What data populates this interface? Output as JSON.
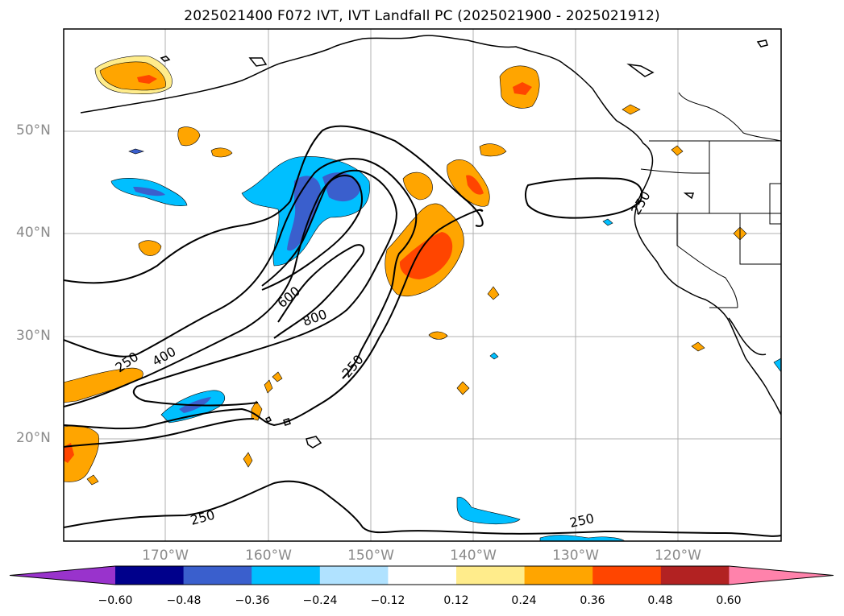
{
  "title": "2025021400 F072 IVT, IVT Landfall PC (2025021900 - 2025021912)",
  "lat_labels": [
    "50°N",
    "40°N",
    "30°N",
    "20°N"
  ],
  "lon_labels": [
    "170°W",
    "160°W",
    "150°W",
    "140°W",
    "130°W",
    "120°W"
  ],
  "contour_labels": [
    "250",
    "400",
    "600",
    "800",
    "250",
    "250",
    "250",
    "250"
  ],
  "colorbar": {
    "colors": [
      "#9933cc",
      "#00008b",
      "#3a5fcd",
      "#00bfff",
      "#b0e2ff",
      "#ffffff",
      "#ffec8b",
      "#ffa500",
      "#ff4500",
      "#b22222",
      "#ff82ab"
    ],
    "ticks": [
      "−0.60",
      "−0.48",
      "−0.36",
      "−0.24",
      "−0.12",
      "0.12",
      "0.24",
      "0.36",
      "0.48",
      "0.60"
    ]
  }
}
